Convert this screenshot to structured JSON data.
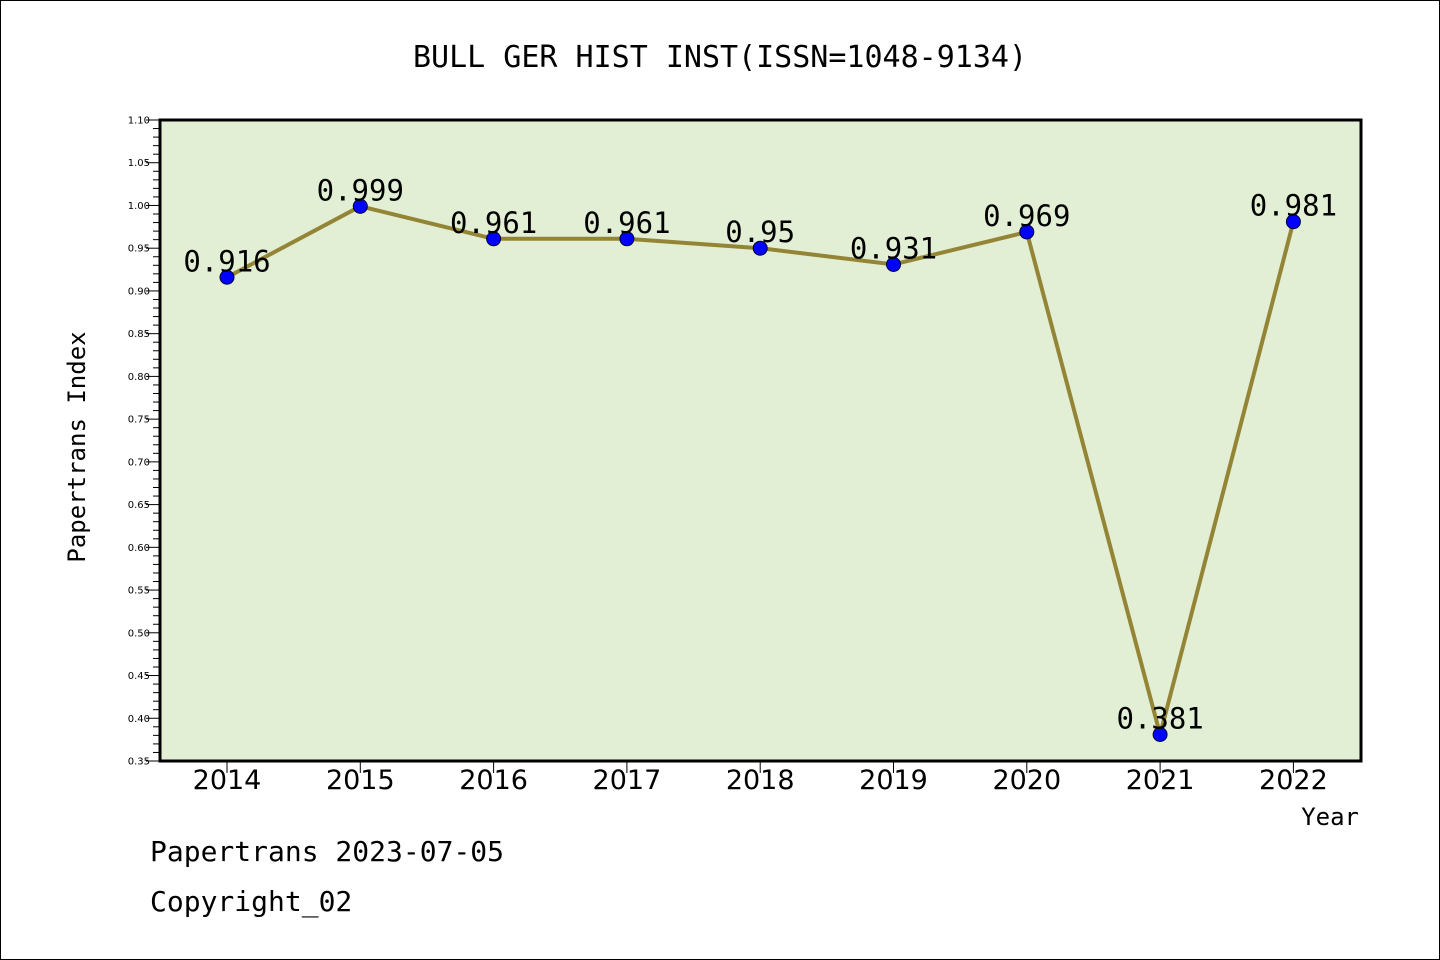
{
  "chart_data": {
    "type": "line",
    "title": "BULL GER HIST INST(ISSN=1048-9134)",
    "xlabel": "Year",
    "ylabel": "Papertrans Index",
    "ylim": [
      0.35,
      1.1
    ],
    "y_ticks": [
      "0.35",
      "0.40",
      "0.45",
      "0.50",
      "0.55",
      "0.60",
      "0.65",
      "0.70",
      "0.75",
      "0.80",
      "0.85",
      "0.90",
      "0.95",
      "1.00",
      "1.05",
      "1.10"
    ],
    "categories": [
      "2014",
      "2015",
      "2016",
      "2017",
      "2018",
      "2019",
      "2020",
      "2021",
      "2022"
    ],
    "values": [
      0.916,
      0.999,
      0.961,
      0.961,
      0.95,
      0.931,
      0.969,
      0.381,
      0.981
    ],
    "data_labels": [
      "0.916",
      "0.999",
      "0.961",
      "0.961",
      "0.95",
      "0.931",
      "0.969",
      "0.381",
      "0.981"
    ],
    "grid": false,
    "colors": {
      "plot_background": "#e2efd4",
      "line": "#948536",
      "marker": "#0000ff"
    }
  },
  "footer": {
    "line1": "Papertrans 2023-07-05",
    "line2": "Copyright_02"
  }
}
